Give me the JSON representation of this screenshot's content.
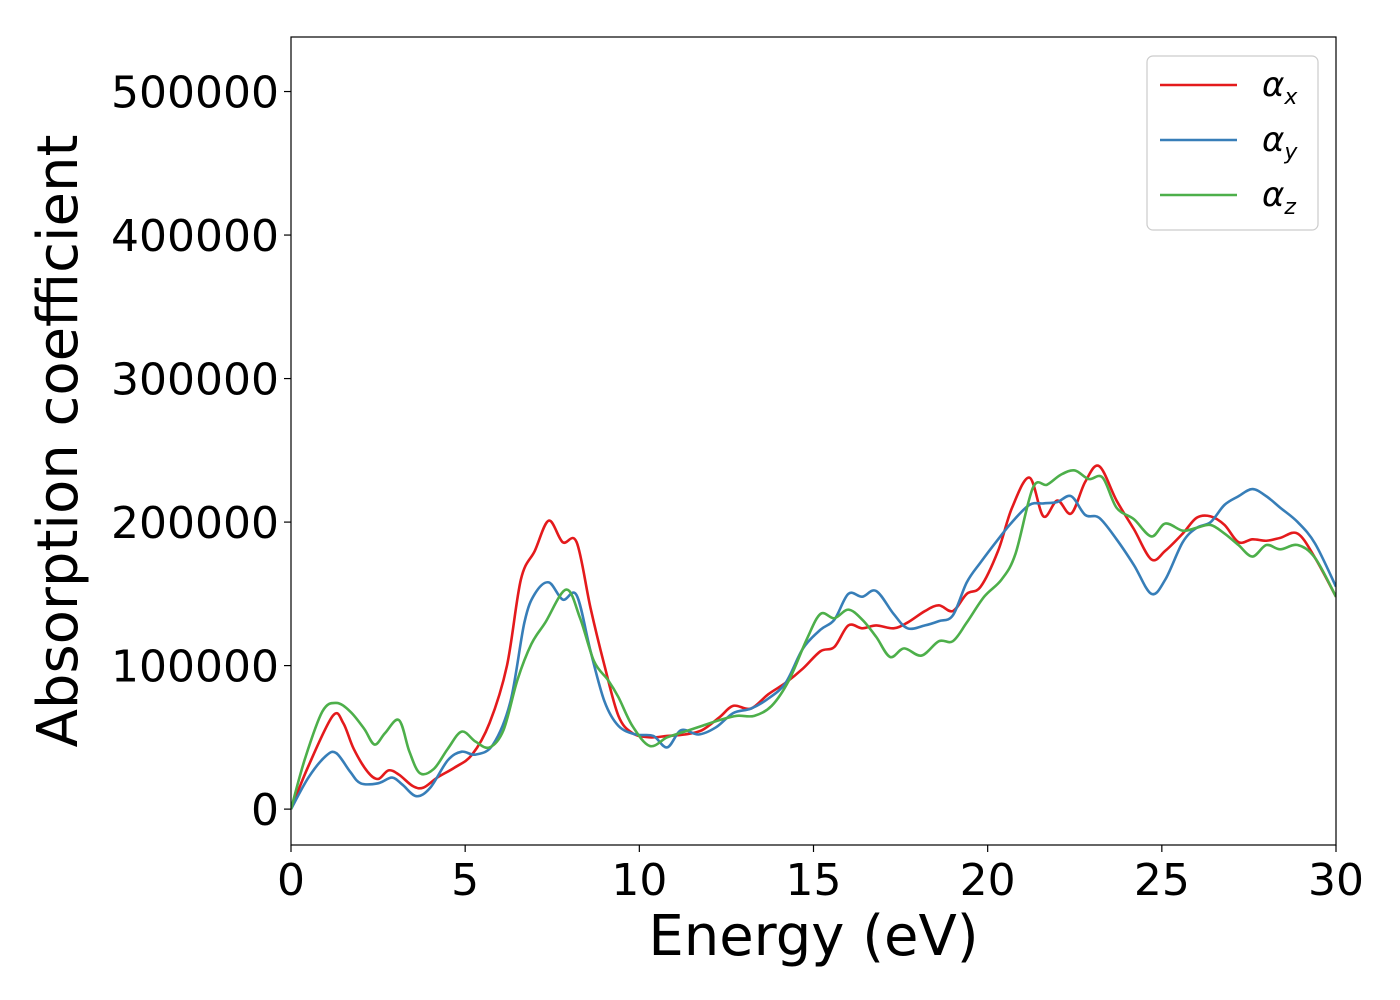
{
  "chart_data": {
    "type": "line",
    "title": "",
    "xlabel": "Energy (eV)",
    "ylabel": "Absorption coefficient",
    "xlim": [
      0,
      30
    ],
    "ylim": [
      -25000,
      538000
    ],
    "xticks": [
      0,
      5,
      10,
      15,
      20,
      25,
      30
    ],
    "xtick_labels": [
      "0",
      "5",
      "10",
      "15",
      "20",
      "25",
      "30"
    ],
    "yticks": [
      0,
      100000,
      200000,
      300000,
      400000,
      500000
    ],
    "ytick_labels": [
      "0",
      "100000",
      "200000",
      "300000",
      "400000",
      "500000"
    ],
    "grid": false,
    "legend_position": "top-right",
    "colors": {
      "alpha_x": "#e41a1c",
      "alpha_y": "#377eb8",
      "alpha_z": "#4daf4a"
    },
    "series": [
      {
        "name_base": "α",
        "name_sub": "x",
        "color": "#e41a1c",
        "points": [
          [
            0,
            0
          ],
          [
            0.5,
            30000
          ],
          [
            1.2,
            65000
          ],
          [
            1.5,
            60000
          ],
          [
            1.8,
            42000
          ],
          [
            2.2,
            26000
          ],
          [
            2.5,
            21000
          ],
          [
            2.8,
            27000
          ],
          [
            3.1,
            24000
          ],
          [
            3.5,
            16000
          ],
          [
            3.8,
            15000
          ],
          [
            4.2,
            22000
          ],
          [
            4.7,
            29000
          ],
          [
            5.2,
            38000
          ],
          [
            5.7,
            60000
          ],
          [
            6.2,
            100000
          ],
          [
            6.6,
            160000
          ],
          [
            7.0,
            180000
          ],
          [
            7.4,
            201000
          ],
          [
            7.8,
            186000
          ],
          [
            8.2,
            186000
          ],
          [
            8.6,
            140000
          ],
          [
            9.0,
            100000
          ],
          [
            9.4,
            65000
          ],
          [
            9.8,
            53000
          ],
          [
            10.3,
            50000
          ],
          [
            10.8,
            51000
          ],
          [
            11.3,
            52000
          ],
          [
            11.8,
            55000
          ],
          [
            12.3,
            64000
          ],
          [
            12.7,
            72000
          ],
          [
            13.2,
            70000
          ],
          [
            13.7,
            80000
          ],
          [
            14.2,
            88000
          ],
          [
            14.7,
            98000
          ],
          [
            15.2,
            110000
          ],
          [
            15.6,
            113000
          ],
          [
            16.0,
            128000
          ],
          [
            16.4,
            126000
          ],
          [
            16.8,
            128000
          ],
          [
            17.3,
            126000
          ],
          [
            17.7,
            130000
          ],
          [
            18.2,
            138000
          ],
          [
            18.6,
            142000
          ],
          [
            19.0,
            138000
          ],
          [
            19.4,
            150000
          ],
          [
            19.8,
            155000
          ],
          [
            20.3,
            180000
          ],
          [
            20.7,
            210000
          ],
          [
            21.2,
            231000
          ],
          [
            21.6,
            204000
          ],
          [
            22.0,
            215000
          ],
          [
            22.4,
            206000
          ],
          [
            22.8,
            228000
          ],
          [
            23.2,
            239000
          ],
          [
            23.7,
            215000
          ],
          [
            24.2,
            195000
          ],
          [
            24.7,
            174000
          ],
          [
            25.1,
            180000
          ],
          [
            25.6,
            192000
          ],
          [
            26.0,
            203000
          ],
          [
            26.4,
            204000
          ],
          [
            26.8,
            198000
          ],
          [
            27.2,
            186000
          ],
          [
            27.6,
            188000
          ],
          [
            28.0,
            187000
          ],
          [
            28.4,
            189000
          ],
          [
            28.9,
            192000
          ],
          [
            29.4,
            175000
          ],
          [
            30.0,
            148000
          ]
        ]
      },
      {
        "name_base": "α",
        "name_sub": "y",
        "color": "#377eb8",
        "points": [
          [
            0,
            0
          ],
          [
            0.5,
            22000
          ],
          [
            1.0,
            37000
          ],
          [
            1.3,
            39000
          ],
          [
            1.7,
            26000
          ],
          [
            2.0,
            18000
          ],
          [
            2.5,
            18000
          ],
          [
            2.9,
            22000
          ],
          [
            3.2,
            17000
          ],
          [
            3.6,
            9000
          ],
          [
            4.0,
            15000
          ],
          [
            4.5,
            34000
          ],
          [
            4.9,
            40000
          ],
          [
            5.3,
            38000
          ],
          [
            5.8,
            45000
          ],
          [
            6.3,
            75000
          ],
          [
            6.7,
            130000
          ],
          [
            7.0,
            150000
          ],
          [
            7.4,
            158000
          ],
          [
            7.8,
            146000
          ],
          [
            8.2,
            149000
          ],
          [
            8.6,
            110000
          ],
          [
            9.0,
            75000
          ],
          [
            9.4,
            58000
          ],
          [
            9.9,
            52000
          ],
          [
            10.4,
            51000
          ],
          [
            10.8,
            43000
          ],
          [
            11.2,
            55000
          ],
          [
            11.7,
            52000
          ],
          [
            12.2,
            57000
          ],
          [
            12.7,
            67000
          ],
          [
            13.2,
            70000
          ],
          [
            13.7,
            77000
          ],
          [
            14.2,
            88000
          ],
          [
            14.7,
            112000
          ],
          [
            15.2,
            125000
          ],
          [
            15.6,
            132000
          ],
          [
            16.0,
            150000
          ],
          [
            16.4,
            148000
          ],
          [
            16.8,
            152000
          ],
          [
            17.3,
            136000
          ],
          [
            17.7,
            126000
          ],
          [
            18.2,
            128000
          ],
          [
            18.6,
            131000
          ],
          [
            19.0,
            135000
          ],
          [
            19.4,
            158000
          ],
          [
            19.8,
            172000
          ],
          [
            20.3,
            188000
          ],
          [
            20.7,
            200000
          ],
          [
            21.2,
            212000
          ],
          [
            21.6,
            213000
          ],
          [
            22.0,
            214000
          ],
          [
            22.4,
            218000
          ],
          [
            22.8,
            205000
          ],
          [
            23.2,
            203000
          ],
          [
            23.7,
            188000
          ],
          [
            24.2,
            170000
          ],
          [
            24.7,
            150000
          ],
          [
            25.1,
            160000
          ],
          [
            25.6,
            186000
          ],
          [
            26.0,
            196000
          ],
          [
            26.4,
            200000
          ],
          [
            26.8,
            212000
          ],
          [
            27.2,
            218000
          ],
          [
            27.6,
            223000
          ],
          [
            28.0,
            218000
          ],
          [
            28.4,
            210000
          ],
          [
            28.9,
            200000
          ],
          [
            29.4,
            185000
          ],
          [
            30.0,
            155000
          ]
        ]
      },
      {
        "name_base": "α",
        "name_sub": "z",
        "color": "#4daf4a",
        "points": [
          [
            0,
            0
          ],
          [
            0.4,
            35000
          ],
          [
            0.9,
            68000
          ],
          [
            1.3,
            74000
          ],
          [
            1.7,
            68000
          ],
          [
            2.1,
            56000
          ],
          [
            2.4,
            45000
          ],
          [
            2.7,
            53000
          ],
          [
            3.1,
            62000
          ],
          [
            3.4,
            40000
          ],
          [
            3.7,
            25000
          ],
          [
            4.1,
            28000
          ],
          [
            4.5,
            42000
          ],
          [
            4.9,
            54000
          ],
          [
            5.3,
            47000
          ],
          [
            5.7,
            43000
          ],
          [
            6.1,
            55000
          ],
          [
            6.5,
            90000
          ],
          [
            6.9,
            115000
          ],
          [
            7.3,
            130000
          ],
          [
            7.9,
            153000
          ],
          [
            8.3,
            133000
          ],
          [
            8.7,
            103000
          ],
          [
            9.1,
            90000
          ],
          [
            9.4,
            78000
          ],
          [
            9.8,
            58000
          ],
          [
            10.3,
            44000
          ],
          [
            10.8,
            50000
          ],
          [
            11.3,
            54000
          ],
          [
            11.8,
            58000
          ],
          [
            12.3,
            62000
          ],
          [
            12.8,
            65000
          ],
          [
            13.3,
            65000
          ],
          [
            13.8,
            72000
          ],
          [
            14.3,
            90000
          ],
          [
            14.8,
            118000
          ],
          [
            15.2,
            136000
          ],
          [
            15.6,
            133000
          ],
          [
            16.0,
            139000
          ],
          [
            16.4,
            132000
          ],
          [
            16.8,
            120000
          ],
          [
            17.2,
            106000
          ],
          [
            17.6,
            112000
          ],
          [
            18.1,
            107000
          ],
          [
            18.6,
            117000
          ],
          [
            19.0,
            117000
          ],
          [
            19.4,
            130000
          ],
          [
            19.9,
            148000
          ],
          [
            20.4,
            160000
          ],
          [
            20.8,
            178000
          ],
          [
            21.3,
            224000
          ],
          [
            21.7,
            226000
          ],
          [
            22.1,
            233000
          ],
          [
            22.5,
            236000
          ],
          [
            22.9,
            230000
          ],
          [
            23.3,
            231000
          ],
          [
            23.7,
            210000
          ],
          [
            24.2,
            202000
          ],
          [
            24.7,
            190000
          ],
          [
            25.1,
            199000
          ],
          [
            25.6,
            194000
          ],
          [
            26.0,
            196000
          ],
          [
            26.4,
            198000
          ],
          [
            26.8,
            192000
          ],
          [
            27.2,
            184000
          ],
          [
            27.6,
            176000
          ],
          [
            28.0,
            184000
          ],
          [
            28.4,
            181000
          ],
          [
            28.9,
            184000
          ],
          [
            29.4,
            175000
          ],
          [
            30.0,
            148000
          ]
        ]
      }
    ]
  }
}
